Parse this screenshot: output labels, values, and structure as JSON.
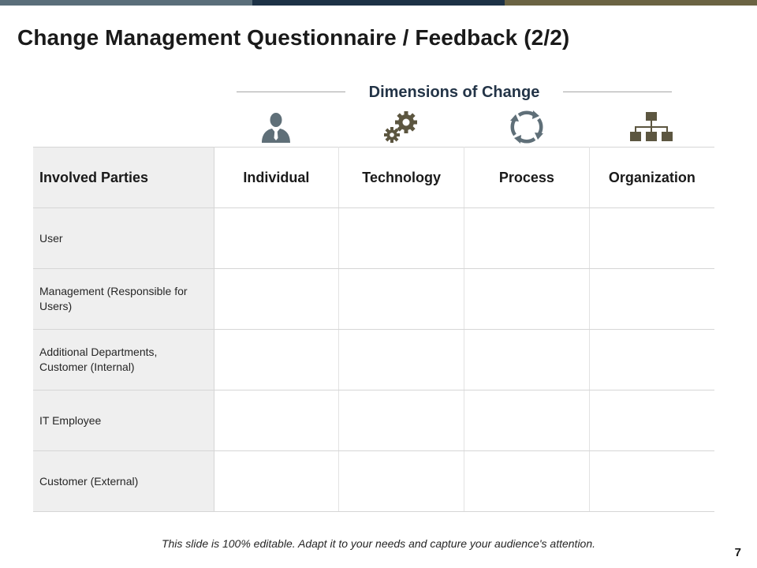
{
  "top_bar": {
    "colors": [
      "#5a6e7a",
      "#1d3246",
      "#6b6443"
    ]
  },
  "title": "Change Management Questionnaire / Feedback (2/2)",
  "dimensions_header": "Dimensions of Change",
  "icons": [
    "person-icon",
    "gears-icon",
    "cycle-arrows-icon",
    "org-chart-icon"
  ],
  "table": {
    "headers": [
      "Involved Parties",
      "Individual",
      "Technology",
      "Process",
      "Organization"
    ],
    "rows": [
      {
        "party": "User",
        "cells": [
          "",
          "",
          "",
          ""
        ]
      },
      {
        "party": "Management (Responsible for Users)",
        "cells": [
          "",
          "",
          "",
          ""
        ]
      },
      {
        "party": "Additional Departments, Customer (Internal)",
        "cells": [
          "",
          "",
          "",
          ""
        ]
      },
      {
        "party": "IT Employee",
        "cells": [
          "",
          "",
          "",
          ""
        ]
      },
      {
        "party": "Customer (External)",
        "cells": [
          "",
          "",
          "",
          ""
        ]
      }
    ]
  },
  "footer": "This slide is 100% editable. Adapt it to your needs and capture your audience's attention.",
  "page_number": "7",
  "colors": {
    "icon_slate": "#5f6f78",
    "icon_olive": "#5c5640",
    "header_text": "#233447"
  }
}
